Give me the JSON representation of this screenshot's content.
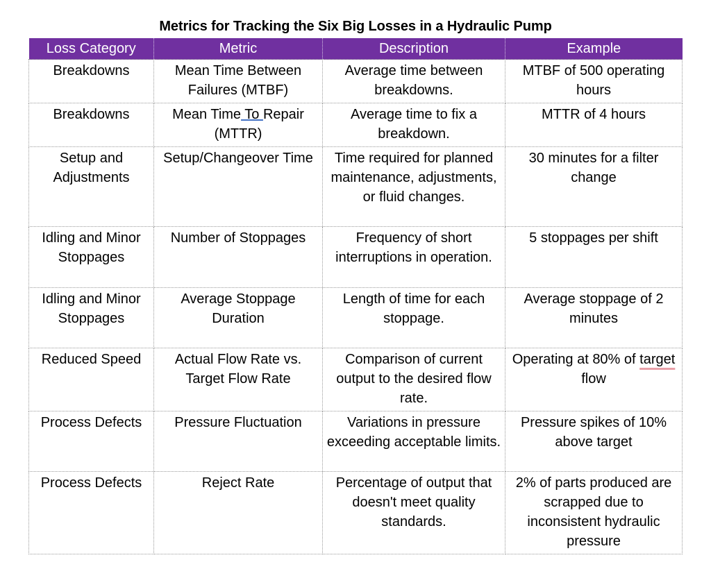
{
  "title": "Metrics for Tracking the Six Big Losses in a Hydraulic Pump",
  "headers": [
    "Loss Category",
    "Metric",
    "Description",
    "Example"
  ],
  "rows": [
    [
      "Breakdowns",
      "Mean Time Between Failures (MTBF)",
      "Average time between breakdowns.",
      "MTBF of 500 operating hours"
    ],
    [
      "Breakdowns",
      "Mean Time To Repair (MTTR)",
      "Average time to fix a breakdown.",
      "MTTR of 4 hours"
    ],
    [
      "Setup and Adjustments",
      "Setup/Changeover Time",
      "Time required for planned maintenance, adjustments, or fluid changes.",
      "30 minutes for a filter change"
    ],
    [
      "Idling and Minor Stoppages",
      "Number of Stoppages",
      "Frequency of short interruptions in operation.",
      "5 stoppages per shift"
    ],
    [
      "Idling and Minor Stoppages",
      "Average Stoppage Duration",
      "Length of time for each stoppage.",
      "Average stoppage of 2 minutes"
    ],
    [
      "Reduced Speed",
      "Actual Flow Rate vs. Target Flow Rate",
      "Comparison of current output to the desired flow rate.",
      "Operating at 80% of target flow"
    ],
    [
      "Process Defects",
      "Pressure Fluctuation",
      "Variations in pressure exceeding acceptable limits.",
      "Pressure spikes of 10% above target"
    ],
    [
      "Process Defects",
      "Reject Rate",
      "Percentage of output that doesn't meet quality standards.",
      "2% of parts produced are scrapped due to inconsistent hydraulic pressure"
    ]
  ],
  "colors": {
    "header_bg": "#7030a0",
    "header_text": "#ffffff"
  }
}
